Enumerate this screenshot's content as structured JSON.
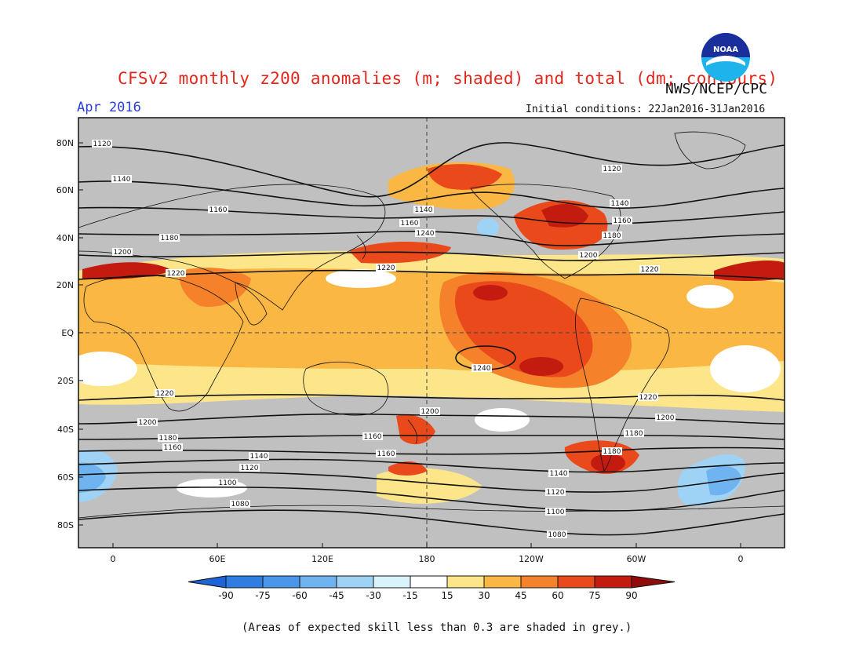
{
  "header": {
    "title": "CFSv2 monthly z200 anomalies (m; shaded) and total (dm; contours)",
    "org": "NWS/NCEP/CPC",
    "month": "Apr 2016",
    "initial_conditions": "Initial conditions: 22Jan2016-31Jan2016"
  },
  "logo": {
    "text": "NOAA"
  },
  "axes": {
    "lat_labels": [
      "80N",
      "60N",
      "40N",
      "20N",
      "EQ",
      "20S",
      "40S",
      "60S",
      "80S"
    ],
    "lon_labels": [
      "0",
      "60E",
      "120E",
      "180",
      "120W",
      "60W",
      "0"
    ]
  },
  "colorbar": {
    "tick_labels": [
      "-90",
      "-75",
      "-60",
      "-45",
      "-30",
      "-15",
      "15",
      "30",
      "45",
      "60",
      "75",
      "90"
    ],
    "colors": [
      "#1e64d8",
      "#2f7de3",
      "#4a96ea",
      "#6fb4f0",
      "#9fd3f6",
      "#d8f3fb",
      "#ffffff",
      "#fde58a",
      "#fbb743",
      "#f5822a",
      "#ea4a1b",
      "#c41b10",
      "#900b0b"
    ]
  },
  "map": {
    "ocean_color": "#c0c0c0",
    "contour_labels": [
      "1120",
      "1140",
      "1160",
      "1180",
      "1200",
      "1220",
      "1240",
      "1120",
      "1140",
      "1160",
      "1180",
      "1200",
      "1220",
      "1220",
      "1200",
      "1180",
      "1160",
      "1140",
      "1120",
      "1100",
      "1080",
      "1220",
      "1200",
      "1180",
      "1160",
      "1140",
      "1120",
      "1100",
      "1080",
      "1200",
      "1160",
      "1180",
      "1220",
      "1240",
      "1140",
      "1160"
    ]
  },
  "footnote": "(Areas of expected skill less than 0.3 are shaded in grey.)"
}
